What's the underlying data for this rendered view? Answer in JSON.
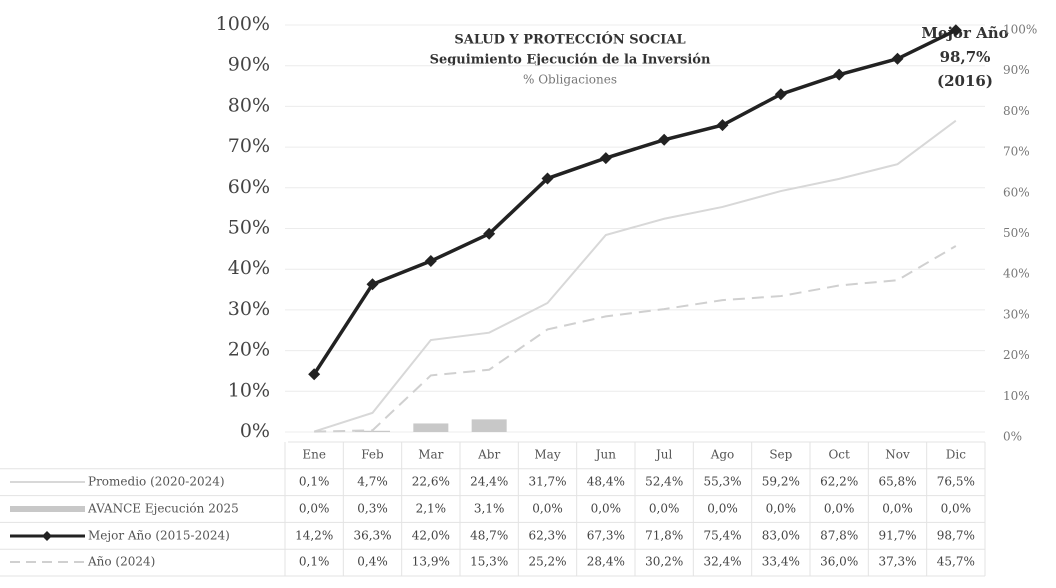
{
  "chart_data": {
    "type": "line",
    "title": "SALUD Y PROTECCIÓN SOCIAL",
    "subtitle": "Seguimiento Ejecución de la Inversión",
    "y_label": "% Obligaciones",
    "annotation": [
      "Mejor Año",
      "98,7%",
      "(2016)"
    ],
    "categories": [
      "Ene",
      "Feb",
      "Mar",
      "Abr",
      "May",
      "Jun",
      "Jul",
      "Ago",
      "Sep",
      "Oct",
      "Nov",
      "Dic"
    ],
    "ylim": [
      0,
      100
    ],
    "yticks": [
      {
        "value": 0,
        "label": "0%"
      },
      {
        "value": 10,
        "label": "10%"
      },
      {
        "value": 20,
        "label": "20%"
      },
      {
        "value": 30,
        "label": "30%"
      },
      {
        "value": 40,
        "label": "40%"
      },
      {
        "value": 50,
        "label": "50%"
      },
      {
        "value": 60,
        "label": "60%"
      },
      {
        "value": 70,
        "label": "70%"
      },
      {
        "value": 80,
        "label": "80%"
      },
      {
        "value": 90,
        "label": "90%"
      },
      {
        "value": 100,
        "label": "100%"
      }
    ],
    "y2lim": [
      0,
      100
    ],
    "y2ticks": [
      {
        "value": 0,
        "label": "0%"
      },
      {
        "value": 10,
        "label": "10%"
      },
      {
        "value": 20,
        "label": "20%"
      },
      {
        "value": 30,
        "label": "30%"
      },
      {
        "value": 40,
        "label": "40%"
      },
      {
        "value": 50,
        "label": "50%"
      },
      {
        "value": 60,
        "label": "60%"
      },
      {
        "value": 70,
        "label": "70%"
      },
      {
        "value": 80,
        "label": "80%"
      },
      {
        "value": 90,
        "label": "90%"
      },
      {
        "value": 100,
        "label": "100%"
      }
    ],
    "grid": true,
    "series": [
      {
        "name": "Promedio (2020-2024)",
        "color": "#d8d8d8",
        "style": "solid",
        "values": [
          0.1,
          4.7,
          22.6,
          24.4,
          31.7,
          48.4,
          52.4,
          55.3,
          59.2,
          62.2,
          65.8,
          76.5
        ],
        "value_labels": [
          "0,1%",
          "4,7%",
          "22,6%",
          "24,4%",
          "31,7%",
          "48,4%",
          "52,4%",
          "55,3%",
          "59,2%",
          "62,2%",
          "65,8%",
          "76,5%"
        ]
      },
      {
        "name": "AVANCE Ejecución 2025",
        "color": "#c8c8c8",
        "style": "bar",
        "values": [
          0.0,
          0.3,
          2.1,
          3.1,
          0.0,
          0.0,
          0.0,
          0.0,
          0.0,
          0.0,
          0.0,
          0.0
        ],
        "value_labels": [
          "0,0%",
          "0,3%",
          "2,1%",
          "3,1%",
          "0,0%",
          "0,0%",
          "0,0%",
          "0,0%",
          "0,0%",
          "0,0%",
          "0,0%",
          "0,0%"
        ]
      },
      {
        "name": "Mejor Año (2015-2024)",
        "color": "#222222",
        "style": "marker",
        "values": [
          14.2,
          36.3,
          42.0,
          48.7,
          62.3,
          67.3,
          71.8,
          75.4,
          83.0,
          87.8,
          91.7,
          98.7
        ],
        "value_labels": [
          "14,2%",
          "36,3%",
          "42,0%",
          "48,7%",
          "62,3%",
          "67,3%",
          "71,8%",
          "75,4%",
          "83,0%",
          "87,8%",
          "91,7%",
          "98,7%"
        ]
      },
      {
        "name": "Año (2024)",
        "color": "#d0d0d0",
        "style": "dashed",
        "values": [
          0.1,
          0.4,
          13.9,
          15.3,
          25.2,
          28.4,
          30.2,
          32.4,
          33.4,
          36.0,
          37.3,
          45.7
        ],
        "value_labels": [
          "0,1%",
          "0,4%",
          "13,9%",
          "15,3%",
          "25,2%",
          "28,4%",
          "30,2%",
          "32,4%",
          "33,4%",
          "36,0%",
          "37,3%",
          "45,7%"
        ]
      }
    ]
  }
}
